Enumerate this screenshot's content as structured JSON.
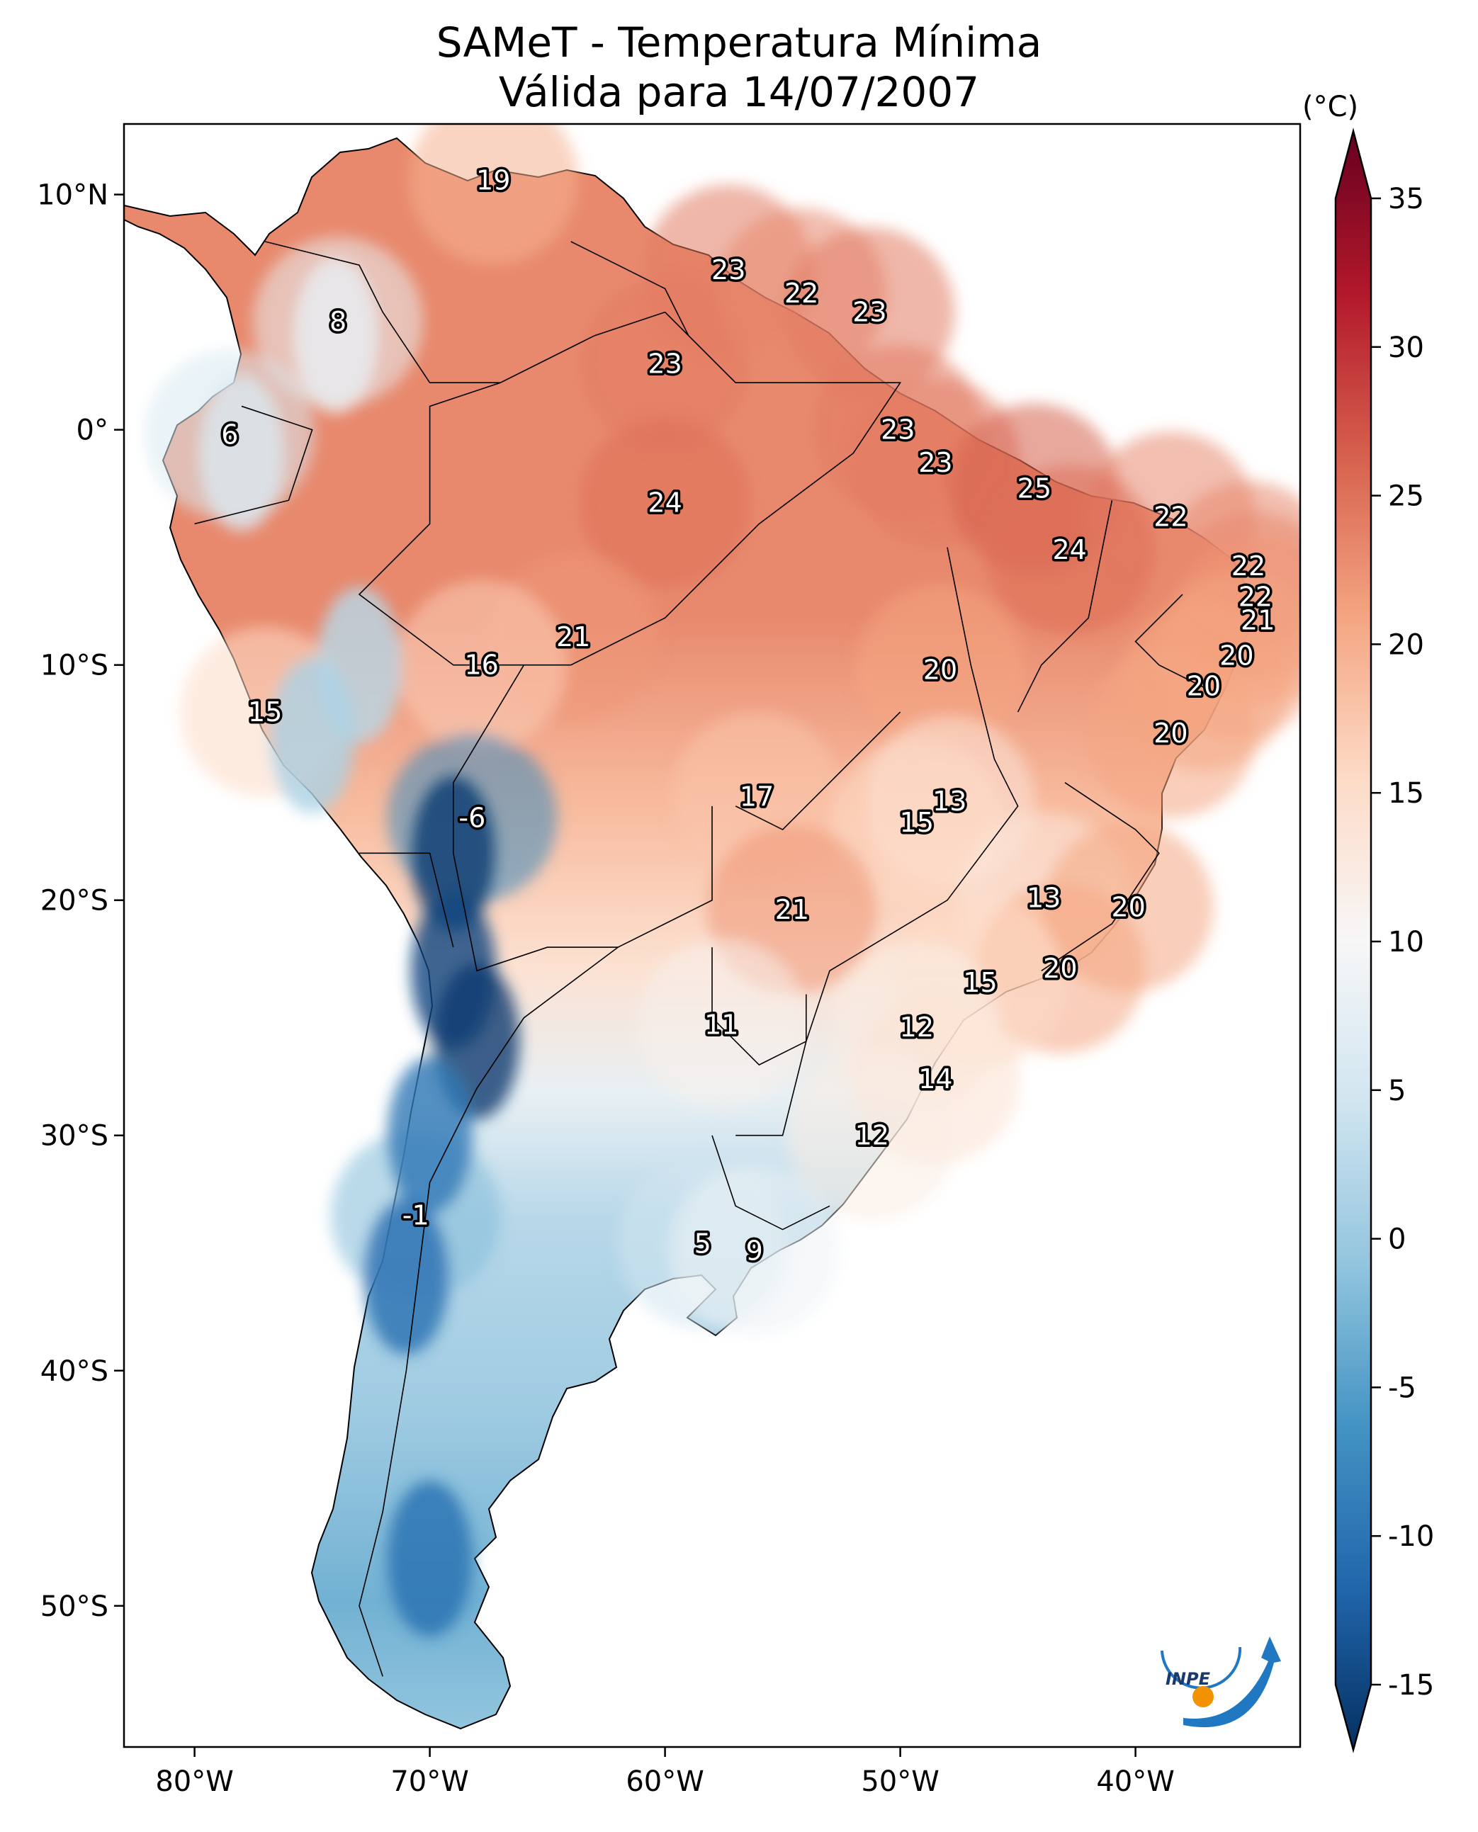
{
  "title": {
    "line1": "SAMeT - Temperatura Mínima",
    "line2": "Válida para 14/07/2007"
  },
  "map": {
    "region": "South America",
    "lon_range": [
      -83,
      -33
    ],
    "lat_range": [
      -56,
      13
    ],
    "lon_ticks": [
      "80°W",
      "70°W",
      "60°W",
      "50°W",
      "40°W"
    ],
    "lat_ticks": [
      "10°N",
      "0°",
      "10°S",
      "20°S",
      "30°S",
      "40°S",
      "50°S"
    ],
    "point_labels": [
      {
        "text": "19",
        "lon": -67.3,
        "lat": 10.6
      },
      {
        "text": "8",
        "lon": -73.9,
        "lat": 4.6
      },
      {
        "text": "6",
        "lon": -78.5,
        "lat": -0.2
      },
      {
        "text": "23",
        "lon": -60.0,
        "lat": 2.8
      },
      {
        "text": "23",
        "lon": -57.3,
        "lat": 6.8
      },
      {
        "text": "22",
        "lon": -54.2,
        "lat": 5.8
      },
      {
        "text": "23",
        "lon": -51.3,
        "lat": 5.0
      },
      {
        "text": "23",
        "lon": -50.1,
        "lat": 0.0
      },
      {
        "text": "23",
        "lon": -48.5,
        "lat": -1.4
      },
      {
        "text": "25",
        "lon": -44.3,
        "lat": -2.5
      },
      {
        "text": "24",
        "lon": -60.0,
        "lat": -3.1
      },
      {
        "text": "22",
        "lon": -38.5,
        "lat": -3.7
      },
      {
        "text": "24",
        "lon": -42.8,
        "lat": -5.1
      },
      {
        "text": "22",
        "lon": -35.2,
        "lat": -5.8
      },
      {
        "text": "22",
        "lon": -34.9,
        "lat": -7.1
      },
      {
        "text": "21",
        "lon": -34.8,
        "lat": -8.1
      },
      {
        "text": "21",
        "lon": -63.9,
        "lat": -8.8
      },
      {
        "text": "20",
        "lon": -48.3,
        "lat": -10.2
      },
      {
        "text": "16",
        "lon": -67.8,
        "lat": -10.0
      },
      {
        "text": "20",
        "lon": -35.7,
        "lat": -9.6
      },
      {
        "text": "20",
        "lon": -37.1,
        "lat": -10.9
      },
      {
        "text": "15",
        "lon": -77.0,
        "lat": -12.0
      },
      {
        "text": "20",
        "lon": -38.5,
        "lat": -12.9
      },
      {
        "text": "17",
        "lon": -56.1,
        "lat": -15.6
      },
      {
        "text": "13",
        "lon": -47.9,
        "lat": -15.8
      },
      {
        "text": "15",
        "lon": -49.3,
        "lat": -16.7
      },
      {
        "text": "-6",
        "lon": -68.2,
        "lat": -16.5
      },
      {
        "text": "13",
        "lon": -43.9,
        "lat": -19.9
      },
      {
        "text": "21",
        "lon": -54.6,
        "lat": -20.4
      },
      {
        "text": "20",
        "lon": -40.3,
        "lat": -20.3
      },
      {
        "text": "20",
        "lon": -43.2,
        "lat": -22.9
      },
      {
        "text": "15",
        "lon": -46.6,
        "lat": -23.5
      },
      {
        "text": "11",
        "lon": -57.6,
        "lat": -25.3
      },
      {
        "text": "12",
        "lon": -49.3,
        "lat": -25.4
      },
      {
        "text": "14",
        "lon": -48.5,
        "lat": -27.6
      },
      {
        "text": "12",
        "lon": -51.2,
        "lat": -30.0
      },
      {
        "text": "-1",
        "lon": -70.6,
        "lat": -33.4
      },
      {
        "text": "5",
        "lon": -58.4,
        "lat": -34.6
      },
      {
        "text": "9",
        "lon": -56.2,
        "lat": -34.9
      }
    ]
  },
  "colorbar": {
    "unit": "(°C)",
    "min": -15,
    "max": 35,
    "ticks": [
      "35",
      "30",
      "25",
      "20",
      "15",
      "10",
      "5",
      "0",
      "-5",
      "-10",
      "-15"
    ],
    "extend": "both",
    "colormap": "RdBu_r",
    "colors": [
      "#053061",
      "#2166ac",
      "#4393c3",
      "#92c5de",
      "#d1e5f0",
      "#f7f7f7",
      "#fddbc7",
      "#f4a582",
      "#d6604d",
      "#b2182b",
      "#67001f"
    ]
  },
  "logo": {
    "text": "INPE",
    "colors": [
      "#1f78c1",
      "#f39200"
    ]
  }
}
